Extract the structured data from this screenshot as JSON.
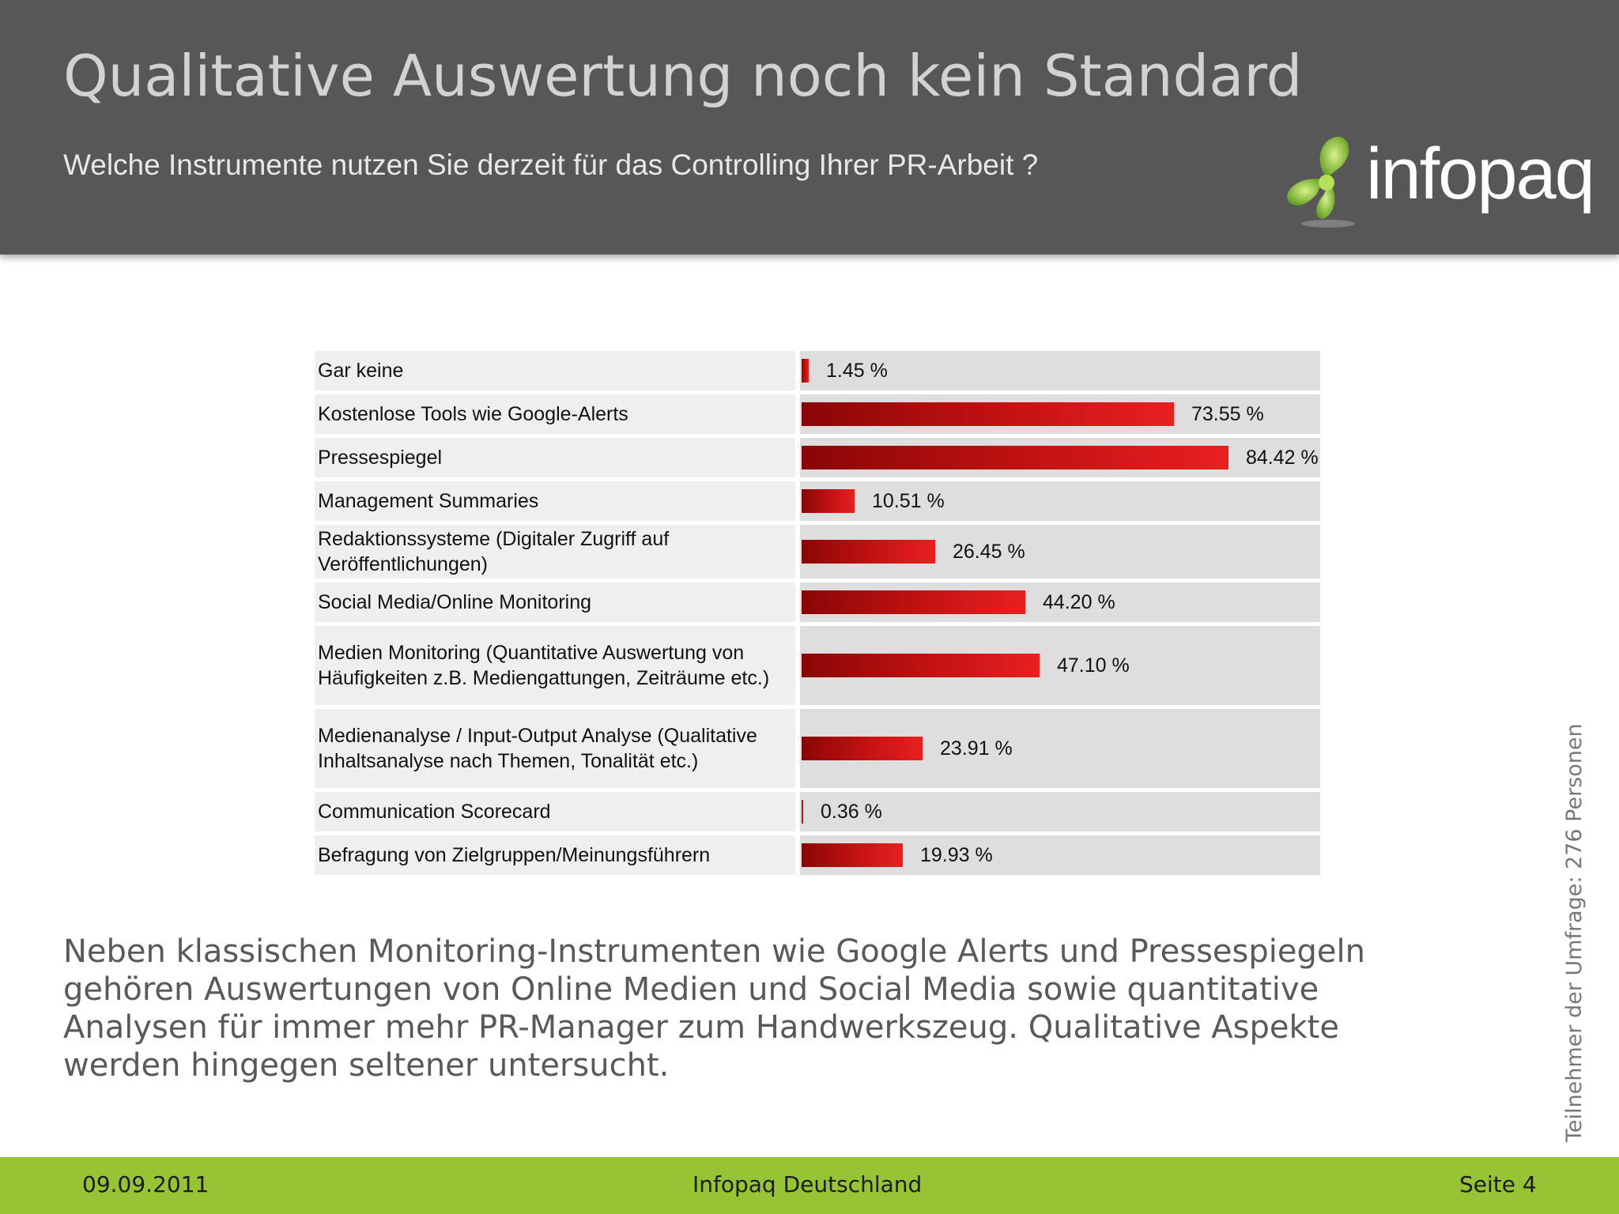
{
  "header": {
    "title": "Qualitative Auswertung noch kein Standard",
    "subtitle": "Welche Instrumente nutzen Sie derzeit für das Controlling Ihrer PR-Arbeit ?",
    "logo_text": "infopaq"
  },
  "chart_data": {
    "type": "bar",
    "orientation": "horizontal",
    "categories": [
      "Gar keine",
      "Kostenlose Tools wie Google-Alerts",
      "Pressespiegel",
      "Management Summaries",
      "Redaktionssysteme (Digitaler Zugriff auf Veröffentlichungen)",
      "Social Media/Online Monitoring",
      "Medien Monitoring (Quantitative Auswertung von Häufigkeiten z.B. Mediengattungen, Zeiträume etc.)",
      "Medienanalyse / Input-Output Analyse (Qualitative Inhaltsanalyse nach Themen, Tonalität etc.)",
      "Communication Scorecard",
      "Befragung von Zielgruppen/Meinungsführern"
    ],
    "values": [
      1.45,
      73.55,
      84.42,
      10.51,
      26.45,
      44.2,
      47.1,
      23.91,
      0.36,
      19.93
    ],
    "value_labels": [
      "1.45 %",
      "73.55 %",
      "84.42 %",
      "10.51 %",
      "26.45 %",
      "44.20 %",
      "47.10 %",
      "23.91 %",
      "0.36 %",
      "19.93 %"
    ],
    "xlim": [
      0,
      100
    ],
    "grid": false,
    "legend": "none",
    "bar_color": "#c41212"
  },
  "body_text": "Neben klassischen Monitoring-Instrumenten wie Google Alerts und Pressespiegeln gehören Auswertungen von Online Medien und Social Media sowie quantitative Analysen für immer mehr PR-Manager zum Handwerkszeug. Qualitative Aspekte werden hingegen seltener untersucht.",
  "side_note": "Teilnehmer der Umfrage: 276 Personen",
  "footer": {
    "date": "09.09.2011",
    "company": "Infopaq Deutschland",
    "page": "Seite 4"
  },
  "colors": {
    "header_bg": "#575757",
    "footer_bg": "#97c435",
    "logo_green": "#8cc63f"
  }
}
